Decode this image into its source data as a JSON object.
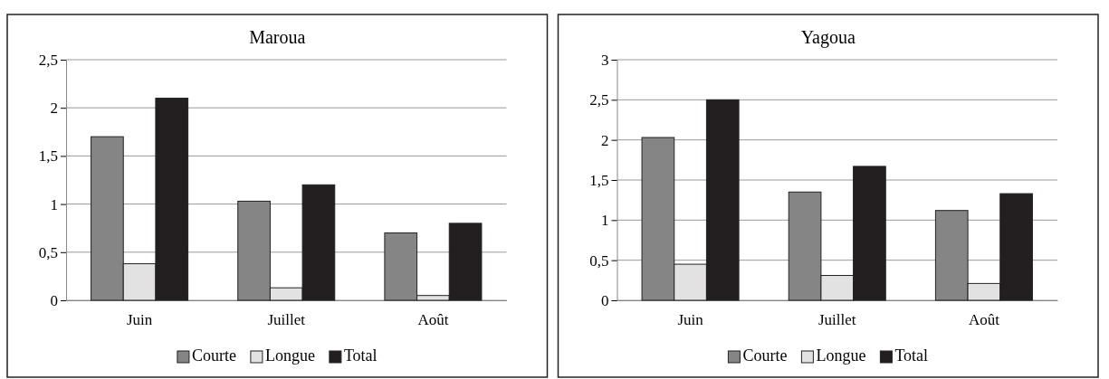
{
  "chart_data": [
    {
      "type": "bar",
      "title": "Maroua",
      "categories": [
        "Juin",
        "Juillet",
        "Août"
      ],
      "series": [
        {
          "name": "Courte",
          "color": "#858585",
          "values": [
            1.7,
            1.03,
            0.7
          ]
        },
        {
          "name": "Longue",
          "color": "#e2e2e2",
          "values": [
            0.38,
            0.13,
            0.05
          ]
        },
        {
          "name": "Total",
          "color": "#231f20",
          "values": [
            2.1,
            1.2,
            0.8
          ]
        }
      ],
      "ylim": [
        0,
        2.5
      ],
      "yticks": [
        {
          "value": 0,
          "label": "0"
        },
        {
          "value": 0.5,
          "label": "0,5"
        },
        {
          "value": 1,
          "label": "1"
        },
        {
          "value": 1.5,
          "label": "1,5"
        },
        {
          "value": 2,
          "label": "2"
        },
        {
          "value": 2.5,
          "label": "2,5"
        }
      ],
      "grid": "y",
      "legend": "bottom"
    },
    {
      "type": "bar",
      "title": "Yagoua",
      "categories": [
        "Juin",
        "Juillet",
        "Août"
      ],
      "series": [
        {
          "name": "Courte",
          "color": "#858585",
          "values": [
            2.03,
            1.35,
            1.12
          ]
        },
        {
          "name": "Longue",
          "color": "#e2e2e2",
          "values": [
            0.45,
            0.31,
            0.21
          ]
        },
        {
          "name": "Total",
          "color": "#231f20",
          "values": [
            2.5,
            1.67,
            1.33
          ]
        }
      ],
      "ylim": [
        0,
        3
      ],
      "yticks": [
        {
          "value": 0,
          "label": "0"
        },
        {
          "value": 0.5,
          "label": "0,5"
        },
        {
          "value": 1,
          "label": "1"
        },
        {
          "value": 1.5,
          "label": "1,5"
        },
        {
          "value": 2,
          "label": "2"
        },
        {
          "value": 2.5,
          "label": "2,5"
        },
        {
          "value": 3,
          "label": "3"
        }
      ],
      "grid": "y",
      "legend": "bottom"
    }
  ]
}
